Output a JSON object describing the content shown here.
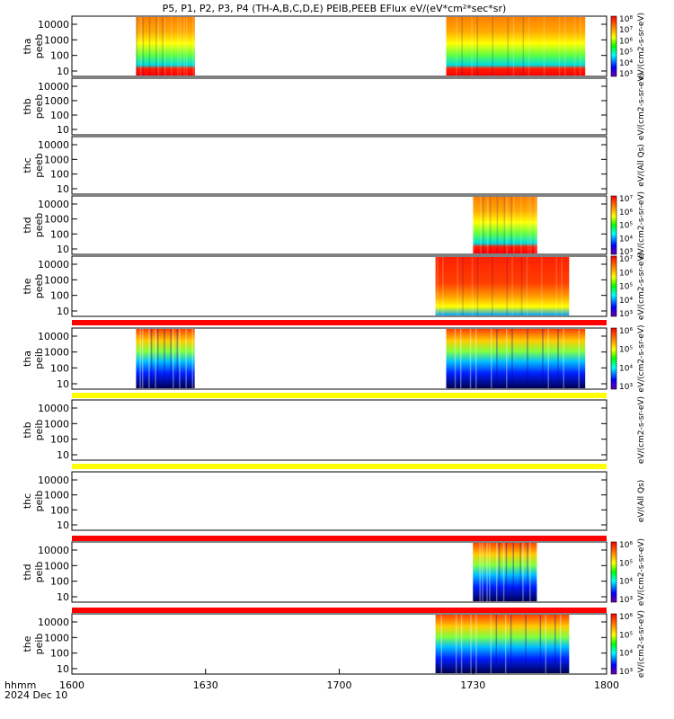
{
  "title": "P5, P1, P2, P3, P4 (TH-A,B,C,D,E) PEIB,PEEB EFlux eV/(eV*cm²*sec*sr)",
  "x_axis": {
    "ticks": [
      "1600",
      "1630",
      "1700",
      "1730",
      "1800"
    ],
    "label_lines": [
      "hhmm",
      "2024 Dec 10"
    ]
  },
  "panels": [
    {
      "probe": "tha",
      "product": "peeb",
      "y_ticks": [
        "10000",
        "1000",
        "100",
        "10"
      ],
      "colorbar": {
        "ticks": [
          "10⁸",
          "10⁷",
          "10⁶",
          "10⁵",
          "10⁴",
          "10³"
        ],
        "label": "eV/(cm2-s-sr-eV)"
      },
      "bands": [
        {
          "start": 0.12,
          "end": 0.23,
          "profile": "eflux"
        },
        {
          "start": 0.7,
          "end": 0.96,
          "profile": "eflux"
        }
      ]
    },
    {
      "probe": "thb",
      "product": "peeb",
      "y_ticks": [
        "10000",
        "1000",
        "100",
        "10"
      ],
      "colorbar": {
        "ticks": [],
        "label": "eV/(cm2-s-sr-eV)"
      },
      "bands": []
    },
    {
      "probe": "thc",
      "product": "peeb",
      "y_ticks": [
        "10000",
        "1000",
        "100",
        "10"
      ],
      "colorbar": {
        "ticks": [],
        "label": "eV/(All Qs)"
      },
      "bands": []
    },
    {
      "probe": "thd",
      "product": "peeb",
      "y_ticks": [
        "10000",
        "1000",
        "100",
        "10"
      ],
      "colorbar": {
        "ticks": [
          "10⁷",
          "10⁶",
          "10⁵",
          "10⁴",
          "10³"
        ],
        "label": "eV/(cm2-s-sr-eV)"
      },
      "bands": [
        {
          "start": 0.75,
          "end": 0.87,
          "profile": "eflux"
        }
      ]
    },
    {
      "probe": "the",
      "product": "peeb",
      "y_ticks": [
        "10000",
        "1000",
        "100",
        "10"
      ],
      "colorbar": {
        "ticks": [
          "10⁷",
          "10⁶",
          "10⁵",
          "10⁴",
          "10³"
        ],
        "label": "eV/(cm2-s-sr-eV)"
      },
      "bands": [
        {
          "start": 0.68,
          "end": 0.93,
          "profile": "hot"
        }
      ]
    },
    {
      "probe": "tha",
      "product": "peib",
      "y_ticks": [
        "10000",
        "1000",
        "100",
        "10"
      ],
      "colorbar": {
        "ticks": [
          "10⁶",
          "10⁵",
          "10⁴",
          "10³"
        ],
        "label": "eV/(cm2-s-sr-eV)"
      },
      "bands": [
        {
          "start": 0.12,
          "end": 0.23,
          "profile": "ion"
        },
        {
          "start": 0.7,
          "end": 0.96,
          "profile": "ion"
        }
      ]
    },
    {
      "probe": "thb",
      "product": "peib",
      "y_ticks": [
        "10000",
        "1000",
        "100",
        "10"
      ],
      "colorbar": {
        "ticks": [],
        "label": "eV/(cm2-s-sr-eV)"
      },
      "bands": []
    },
    {
      "probe": "thc",
      "product": "peib",
      "y_ticks": [
        "10000",
        "1000",
        "100",
        "10"
      ],
      "colorbar": {
        "ticks": [],
        "label": "eV/(All Qs)"
      },
      "bands": []
    },
    {
      "probe": "thd",
      "product": "peib",
      "y_ticks": [
        "10000",
        "1000",
        "100",
        "10"
      ],
      "colorbar": {
        "ticks": [
          "10⁶",
          "10⁵",
          "10⁴",
          "10³"
        ],
        "label": "eV/(cm2-s-sr-eV)"
      },
      "bands": [
        {
          "start": 0.75,
          "end": 0.87,
          "profile": "ion"
        }
      ]
    },
    {
      "probe": "the",
      "product": "peib",
      "y_ticks": [
        "10000",
        "1000",
        "100",
        "10"
      ],
      "colorbar": {
        "ticks": [
          "10⁶",
          "10⁵",
          "10⁴",
          "10³"
        ],
        "label": "eV/(cm2-s-sr-eV)"
      },
      "bands": [
        {
          "start": 0.68,
          "end": 0.93,
          "profile": "ion"
        }
      ]
    }
  ],
  "status_bars": [
    {
      "after_panel": 4,
      "color": "#ff0000"
    },
    {
      "after_panel": 5,
      "color": "#ffff00"
    },
    {
      "after_panel": 6,
      "color": "#ffff00"
    },
    {
      "after_panel": 7,
      "color": "#ff0000"
    },
    {
      "after_panel": 8,
      "color": "#ff0000"
    }
  ],
  "chart_data": {
    "type": "heatmap",
    "title": "P5, P1, P2, P3, P4 (TH-A,B,C,D,E) PEIB,PEEB EFlux eV/(eV*cm²*sec*sr)",
    "x_range": [
      "16:00",
      "18:00"
    ],
    "y_scale": "log",
    "y_range": [
      5,
      30000
    ],
    "series": [
      {
        "name": "tha peeb",
        "intervals": [
          [
            "16:12",
            "16:28"
          ],
          [
            "17:24",
            "17:56"
          ]
        ]
      },
      {
        "name": "thb peeb",
        "intervals": []
      },
      {
        "name": "thc peeb",
        "intervals": []
      },
      {
        "name": "thd peeb",
        "intervals": [
          [
            "17:30",
            "17:45"
          ]
        ]
      },
      {
        "name": "the peeb",
        "intervals": [
          [
            "17:22",
            "17:52"
          ]
        ]
      },
      {
        "name": "tha peib",
        "intervals": [
          [
            "16:12",
            "16:28"
          ],
          [
            "17:24",
            "17:56"
          ]
        ]
      },
      {
        "name": "thb peib",
        "intervals": []
      },
      {
        "name": "thc peib",
        "intervals": []
      },
      {
        "name": "thd peib",
        "intervals": [
          [
            "17:30",
            "17:45"
          ]
        ]
      },
      {
        "name": "the peib",
        "intervals": [
          [
            "17:22",
            "17:52"
          ]
        ]
      }
    ]
  }
}
